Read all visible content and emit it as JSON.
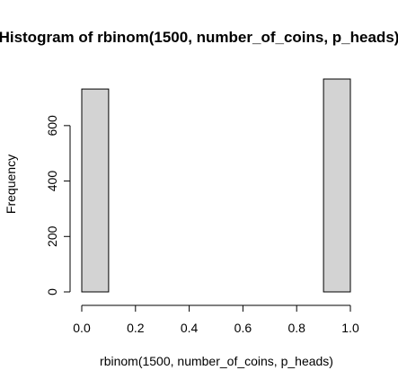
{
  "chart_data": {
    "type": "bar",
    "title": "Histogram of rbinom(1500, number_of_coins, p_heads)",
    "xlabel": "rbinom(1500, number_of_coins, p_heads)",
    "ylabel": "Frequency",
    "bins": [
      {
        "from": 0.0,
        "to": 0.1,
        "value": 732
      },
      {
        "from": 0.1,
        "to": 0.2,
        "value": 0
      },
      {
        "from": 0.2,
        "to": 0.3,
        "value": 0
      },
      {
        "from": 0.3,
        "to": 0.4,
        "value": 0
      },
      {
        "from": 0.4,
        "to": 0.5,
        "value": 0
      },
      {
        "from": 0.5,
        "to": 0.6,
        "value": 0
      },
      {
        "from": 0.6,
        "to": 0.7,
        "value": 0
      },
      {
        "from": 0.7,
        "to": 0.8,
        "value": 0
      },
      {
        "from": 0.8,
        "to": 0.9,
        "value": 0
      },
      {
        "from": 0.9,
        "to": 1.0,
        "value": 768
      }
    ],
    "xlim": [
      0.0,
      1.0
    ],
    "ylim": [
      0,
      768
    ],
    "x_ticks": [
      "0.0",
      "0.2",
      "0.4",
      "0.6",
      "0.8",
      "1.0"
    ],
    "y_ticks": [
      "0",
      "200",
      "400",
      "600"
    ],
    "bar_fill": "#d3d3d3",
    "bar_stroke": "#000000",
    "grid": false,
    "legend": "none"
  }
}
